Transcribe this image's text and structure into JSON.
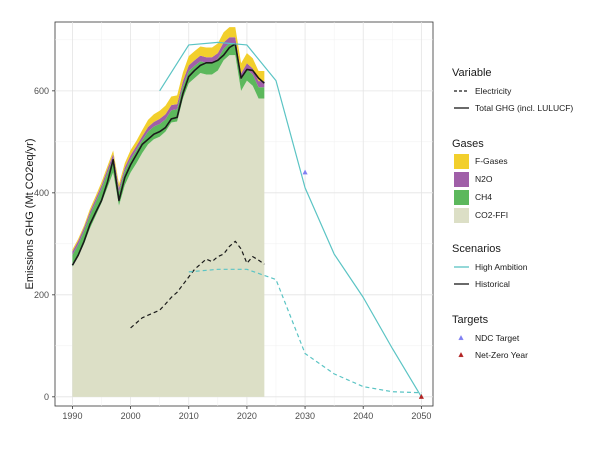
{
  "chart_data": {
    "type": "area",
    "title": "",
    "xlabel": "",
    "ylabel": "Emissions GHG (Mt CO2eq/yr)",
    "xlim": [
      1987,
      2052
    ],
    "ylim": [
      -18,
      735
    ],
    "x_ticks": [
      1990,
      2000,
      2010,
      2020,
      2030,
      2040,
      2050
    ],
    "y_ticks": [
      0,
      200,
      400,
      600
    ],
    "grid": true,
    "legend_position": "right",
    "stacked_gases": {
      "years": [
        1990,
        1991,
        1992,
        1993,
        1994,
        1995,
        1996,
        1997,
        1998,
        1999,
        2000,
        2001,
        2002,
        2003,
        2004,
        2005,
        2006,
        2007,
        2008,
        2009,
        2010,
        2011,
        2012,
        2013,
        2014,
        2015,
        2016,
        2017,
        2018,
        2019,
        2020,
        2021,
        2022,
        2023
      ],
      "series": [
        {
          "name": "CO2-FFI",
          "color": "#dcdfc6",
          "values": [
            255,
            275,
            300,
            330,
            355,
            380,
            410,
            440,
            375,
            415,
            440,
            458,
            478,
            495,
            505,
            510,
            520,
            538,
            540,
            585,
            615,
            625,
            635,
            632,
            632,
            640,
            660,
            670,
            670,
            600,
            620,
            610,
            585,
            585
          ]
        },
        {
          "name": "CH4",
          "color": "#5cb85c",
          "values": [
            23,
            24,
            25,
            26,
            27,
            28,
            28,
            28,
            27,
            27,
            26,
            26,
            25,
            25,
            25,
            25,
            24,
            24,
            24,
            24,
            24,
            24,
            23,
            23,
            23,
            23,
            23,
            23,
            23,
            22,
            22,
            22,
            22,
            22
          ]
        },
        {
          "name": "N2O",
          "color": "#a05fa8",
          "values": [
            7,
            7,
            7,
            7,
            7,
            7,
            8,
            8,
            8,
            8,
            8,
            8,
            8,
            9,
            9,
            10,
            10,
            10,
            10,
            10,
            11,
            11,
            11,
            11,
            11,
            11,
            12,
            12,
            12,
            12,
            12,
            12,
            12,
            12
          ]
        },
        {
          "name": "F-Gases",
          "color": "#f2cf2c",
          "values": [
            4,
            4,
            4,
            5,
            5,
            6,
            6,
            7,
            7,
            8,
            10,
            10,
            12,
            14,
            15,
            16,
            17,
            17,
            17,
            17,
            18,
            18,
            18,
            19,
            19,
            19,
            20,
            20,
            20,
            20,
            20,
            20,
            20,
            20
          ]
        }
      ]
    },
    "lines": [
      {
        "name": "Total GHG (incl. LULUCF)",
        "variable": "Total GHG (incl. LULUCF)",
        "scenario": "Historical",
        "color": "#1a1a1a",
        "x": [
          1990,
          1991,
          1992,
          1993,
          1994,
          1995,
          1996,
          1997,
          1998,
          1999,
          2000,
          2001,
          2002,
          2003,
          2004,
          2005,
          2006,
          2007,
          2008,
          2009,
          2010,
          2011,
          2012,
          2013,
          2014,
          2015,
          2016,
          2017,
          2018,
          2019,
          2020,
          2021,
          2022,
          2023
        ],
        "y": [
          258,
          278,
          305,
          338,
          362,
          385,
          420,
          465,
          385,
          430,
          455,
          475,
          495,
          505,
          515,
          520,
          528,
          545,
          548,
          595,
          628,
          640,
          650,
          655,
          655,
          660,
          670,
          685,
          692,
          625,
          642,
          640,
          625,
          615
        ]
      },
      {
        "name": "Electricity",
        "variable": "Electricity",
        "scenario": "Historical",
        "color": "#1a1a1a",
        "x": [
          2000,
          2001,
          2002,
          2003,
          2004,
          2005,
          2006,
          2007,
          2008,
          2009,
          2010,
          2011,
          2012,
          2013,
          2014,
          2015,
          2016,
          2017,
          2018,
          2019,
          2020,
          2021,
          2022,
          2023
        ],
        "y": [
          135,
          145,
          155,
          160,
          165,
          170,
          182,
          195,
          205,
          220,
          235,
          250,
          260,
          270,
          265,
          275,
          280,
          295,
          305,
          290,
          262,
          275,
          268,
          260
        ]
      },
      {
        "name": "Total GHG (incl. LULUCF)",
        "variable": "Total GHG (incl. LULUCF)",
        "scenario": "High Ambition",
        "color": "#5bc4c4",
        "x": [
          2005,
          2010,
          2015,
          2020,
          2025,
          2030,
          2035,
          2040,
          2045,
          2050
        ],
        "y": [
          600,
          690,
          695,
          690,
          620,
          410,
          280,
          195,
          95,
          0
        ]
      },
      {
        "name": "Electricity",
        "variable": "Electricity",
        "scenario": "High Ambition",
        "color": "#5bc4c4",
        "x": [
          2010,
          2015,
          2020,
          2025,
          2030,
          2035,
          2040,
          2045,
          2050
        ],
        "y": [
          245,
          250,
          250,
          230,
          85,
          45,
          20,
          10,
          8
        ]
      }
    ],
    "points": [
      {
        "name": "NDC Target",
        "x": 2030,
        "y": 440,
        "color": "#7f7ff2"
      },
      {
        "name": "Net-Zero Year",
        "x": 2050,
        "y": 0,
        "color": "#b22222"
      }
    ],
    "legend": {
      "variable": {
        "title": "Variable",
        "items": [
          "Electricity",
          "Total GHG (incl. LULUCF)"
        ]
      },
      "gases": {
        "title": "Gases",
        "items": [
          "F-Gases",
          "N2O",
          "CH4",
          "CO2-FFI"
        ]
      },
      "scenarios": {
        "title": "Scenarios",
        "items": [
          "High Ambition",
          "Historical"
        ]
      },
      "targets": {
        "title": "Targets",
        "items": [
          "NDC Target",
          "Net-Zero Year"
        ]
      }
    }
  }
}
